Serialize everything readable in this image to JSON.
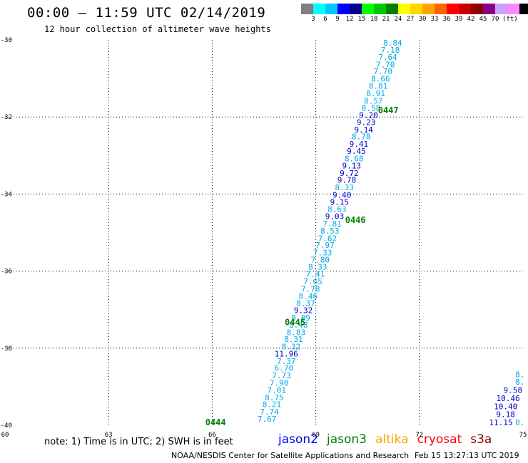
{
  "header": {
    "title": "00:00 – 11:59 UTC 02/14/2019",
    "subtitle": "12 hour collection of altimeter wave heights"
  },
  "colorbar": {
    "colors": [
      "#808080",
      "#00ffff",
      "#00c8ff",
      "#0000ff",
      "#00008b",
      "#00ff00",
      "#00c800",
      "#008000",
      "#ffff00",
      "#ffd700",
      "#ffa500",
      "#ff6400",
      "#ff0000",
      "#c80000",
      "#8b0000",
      "#8b008b",
      "#c8a0ff",
      "#ff88ff",
      "#000000"
    ],
    "labels": [
      "3",
      "6",
      "9",
      "12",
      "15",
      "18",
      "21",
      "24",
      "27",
      "30",
      "33",
      "36",
      "39",
      "42",
      "45",
      "70"
    ],
    "unit": "(ft)"
  },
  "chart_data": {
    "type": "scatter",
    "xlim": [
      60,
      75
    ],
    "ylim": [
      -40,
      -30
    ],
    "x_ticks": [
      "60",
      "63",
      "66",
      "69",
      "72",
      "75"
    ],
    "y_ticks": [
      "-30",
      "-32",
      "-34",
      "-36",
      "-38",
      "-40"
    ],
    "grid": true,
    "series": [
      {
        "name": "jason2",
        "color": "#0000ff",
        "points": [],
        "labels": []
      },
      {
        "name": "jason3",
        "color": "#008000",
        "points": [],
        "labels": [
          {
            "x": 70.8,
            "y": -31.9,
            "text": "0447"
          },
          {
            "x": 69.85,
            "y": -34.75,
            "text": "0446"
          },
          {
            "x": 68.1,
            "y": -37.4,
            "text": "0445"
          },
          {
            "x": 65.8,
            "y": -40.0,
            "text": "0444"
          }
        ]
      },
      {
        "name": "altika",
        "color": "#ffa500",
        "points": [],
        "labels": []
      },
      {
        "name": "cryosat",
        "color": "#ff0000",
        "points": [],
        "labels": []
      },
      {
        "name": "s3a",
        "color": "#8b0000",
        "points": [],
        "labels": []
      }
    ],
    "track_points": [
      {
        "x": 71.5,
        "y": -30.15,
        "text": "8.84"
      },
      {
        "x": 71.43,
        "y": -30.33,
        "text": "7.18"
      },
      {
        "x": 71.36,
        "y": -30.52,
        "text": "7.64"
      },
      {
        "x": 71.29,
        "y": -30.71,
        "text": "7.70"
      },
      {
        "x": 71.22,
        "y": -30.89,
        "text": "7.70"
      },
      {
        "x": 71.15,
        "y": -31.08,
        "text": "8.66"
      },
      {
        "x": 71.08,
        "y": -31.27,
        "text": "8.81"
      },
      {
        "x": 71.01,
        "y": -31.46,
        "text": "8.91"
      },
      {
        "x": 70.94,
        "y": -31.65,
        "text": "8.57"
      },
      {
        "x": 70.87,
        "y": -31.84,
        "text": "8.58"
      },
      {
        "x": 70.8,
        "y": -32.02,
        "text": "9.20"
      },
      {
        "x": 70.73,
        "y": -32.21,
        "text": "9.23"
      },
      {
        "x": 70.66,
        "y": -32.4,
        "text": "9.14"
      },
      {
        "x": 70.59,
        "y": -32.58,
        "text": "8.78"
      },
      {
        "x": 70.52,
        "y": -32.77,
        "text": "9.41"
      },
      {
        "x": 70.45,
        "y": -32.96,
        "text": "9.45"
      },
      {
        "x": 70.38,
        "y": -33.15,
        "text": "8.68"
      },
      {
        "x": 70.31,
        "y": -33.34,
        "text": "9.13"
      },
      {
        "x": 70.24,
        "y": -33.53,
        "text": "9.72"
      },
      {
        "x": 70.17,
        "y": -33.71,
        "text": "9.78"
      },
      {
        "x": 70.1,
        "y": -33.9,
        "text": "8.33"
      },
      {
        "x": 70.03,
        "y": -34.09,
        "text": "9.40"
      },
      {
        "x": 69.96,
        "y": -34.28,
        "text": "9.15"
      },
      {
        "x": 69.89,
        "y": -34.46,
        "text": "8.63"
      },
      {
        "x": 69.82,
        "y": -34.65,
        "text": "9.03"
      },
      {
        "x": 69.75,
        "y": -34.84,
        "text": "7.81"
      },
      {
        "x": 69.68,
        "y": -35.03,
        "text": "8.53"
      },
      {
        "x": 69.61,
        "y": -35.22,
        "text": "7.62"
      },
      {
        "x": 69.54,
        "y": -35.4,
        "text": "7.97"
      },
      {
        "x": 69.47,
        "y": -35.59,
        "text": "7.33"
      },
      {
        "x": 69.4,
        "y": -35.78,
        "text": "7.80"
      },
      {
        "x": 69.33,
        "y": -35.96,
        "text": "8.33"
      },
      {
        "x": 69.26,
        "y": -36.15,
        "text": "7.41"
      },
      {
        "x": 69.19,
        "y": -36.34,
        "text": "7.65"
      },
      {
        "x": 69.12,
        "y": -36.53,
        "text": "7.78"
      },
      {
        "x": 69.05,
        "y": -36.72,
        "text": "8.46"
      },
      {
        "x": 68.98,
        "y": -36.9,
        "text": "8.37"
      },
      {
        "x": 68.91,
        "y": -37.09,
        "text": "9.32"
      },
      {
        "x": 68.84,
        "y": -37.28,
        "text": "8.89"
      },
      {
        "x": 68.77,
        "y": -37.47,
        "text": "8.48"
      },
      {
        "x": 68.7,
        "y": -37.66,
        "text": "8.83"
      },
      {
        "x": 68.63,
        "y": -37.84,
        "text": "8.31"
      },
      {
        "x": 68.56,
        "y": -38.03,
        "text": "8.32"
      },
      {
        "x": 68.49,
        "y": -38.22,
        "text": "11.96"
      },
      {
        "x": 68.42,
        "y": -38.41,
        "text": "7.37"
      },
      {
        "x": 68.35,
        "y": -38.59,
        "text": "6.70"
      },
      {
        "x": 68.28,
        "y": -38.78,
        "text": "7.73"
      },
      {
        "x": 68.21,
        "y": -38.97,
        "text": "7.90"
      },
      {
        "x": 68.14,
        "y": -39.16,
        "text": "7.01"
      },
      {
        "x": 68.07,
        "y": -39.35,
        "text": "8.75"
      },
      {
        "x": 68.0,
        "y": -39.53,
        "text": "8.21"
      },
      {
        "x": 67.93,
        "y": -39.72,
        "text": "7.74"
      },
      {
        "x": 67.86,
        "y": -39.91,
        "text": "7.67"
      },
      {
        "x": 75.05,
        "y": -38.75,
        "text": "8."
      },
      {
        "x": 75.05,
        "y": -38.95,
        "text": "8."
      },
      {
        "x": 74.98,
        "y": -39.16,
        "text": "9.58"
      },
      {
        "x": 74.91,
        "y": -39.37,
        "text": "10.46"
      },
      {
        "x": 74.84,
        "y": -39.58,
        "text": "10.40"
      },
      {
        "x": 74.77,
        "y": -39.79,
        "text": "9.18"
      },
      {
        "x": 74.7,
        "y": -40.0,
        "text": "11.15"
      },
      {
        "x": 75.05,
        "y": -40.0,
        "text": "0."
      }
    ]
  },
  "note": "note: 1) Time is in UTC; 2) SWH is in feet",
  "legend": [
    {
      "name": "jason2",
      "color": "#0000ff"
    },
    {
      "name": "jason3",
      "color": "#008000"
    },
    {
      "name": "altika",
      "color": "#ffa500"
    },
    {
      "name": "cryosat",
      "color": "#ff0000"
    },
    {
      "name": "s3a",
      "color": "#8b0000"
    }
  ],
  "credit": {
    "left": "NOAA/NESDIS Center for Satellite Applications and Research",
    "right": "Feb 15 13:27:13 UTC 2019"
  }
}
